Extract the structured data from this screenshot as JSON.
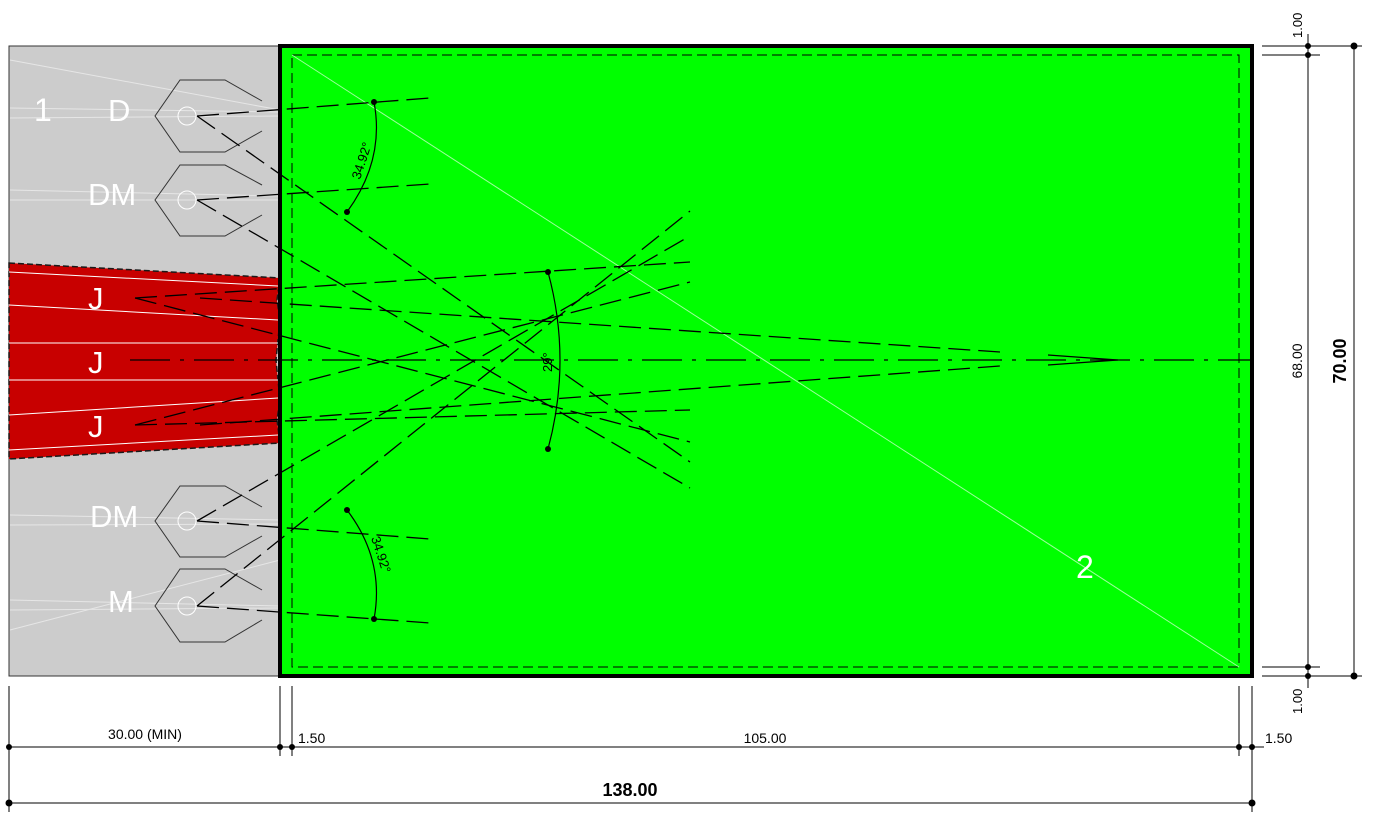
{
  "zones": {
    "zone1_label": "1",
    "zone2_label": "2"
  },
  "stations": {
    "d": "D",
    "dm_top": "DM",
    "j_top": "J",
    "j_mid": "J",
    "j_bot": "J",
    "dm_bottom": "DM",
    "m": "M"
  },
  "angles": {
    "top": "34.92°",
    "center": "29°",
    "bottom": "34.92°"
  },
  "dimensions": {
    "approach_min": "30.00 (MIN)",
    "margin_left": "1.50",
    "field_length": "105.00",
    "margin_right": "1.50",
    "total_length": "138.00",
    "margin_top": "1.00",
    "margin_bottom": "1.00",
    "field_width": "68.00",
    "total_width": "70.00"
  },
  "colors": {
    "field_green": "#00ff00",
    "approach_grey": "#cccccc",
    "runway_red": "#c80000",
    "outline": "#000000",
    "label_white": "#ffffff"
  }
}
